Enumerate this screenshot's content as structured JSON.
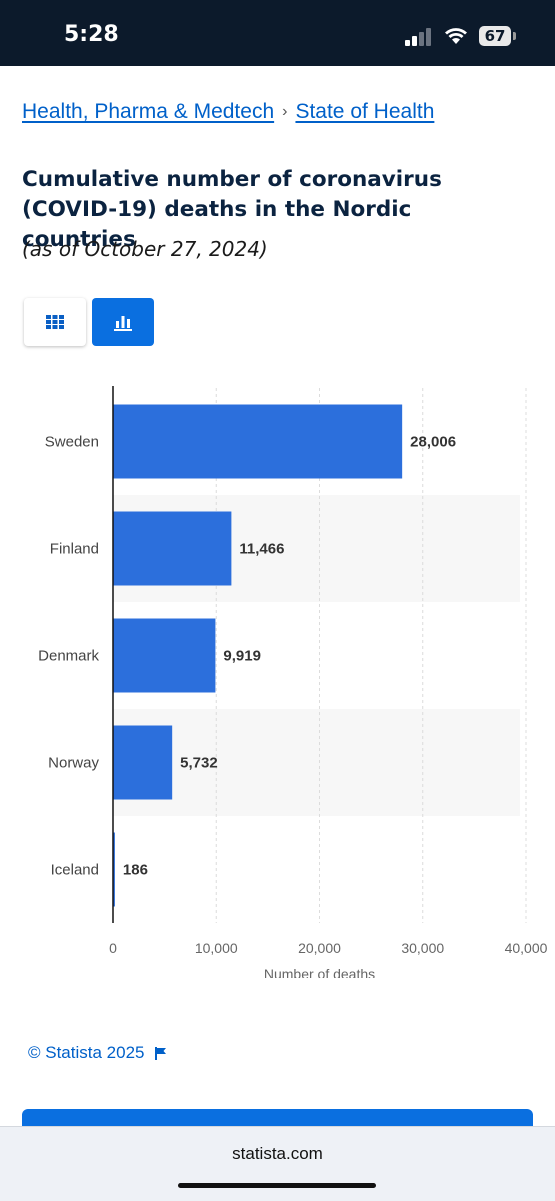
{
  "status": {
    "time": "5:28",
    "battery": "67"
  },
  "breadcrumb": {
    "item1": "Health, Pharma & Medtech",
    "item2": "State of Health"
  },
  "title": "Cumulative number of coronavirus (COVID-19) deaths in the Nordic countries",
  "subtitle": "(as of October 27, 2024)",
  "view_toggle": {
    "active": "chart"
  },
  "colors": {
    "bar": "#2c6fdc",
    "accent": "#0a6fe0",
    "link": "#0060c9",
    "stripe": "#f7f7f7"
  },
  "chart_data": {
    "type": "bar",
    "orientation": "horizontal",
    "categories": [
      "Sweden",
      "Finland",
      "Denmark",
      "Norway",
      "Iceland"
    ],
    "values": [
      28006,
      11466,
      9919,
      5732,
      186
    ],
    "value_labels": [
      "28,006",
      "11,466",
      "9,919",
      "5,732",
      "186"
    ],
    "xlabel": "Number of deaths",
    "xlim": [
      0,
      40000
    ],
    "xticks": [
      0,
      10000,
      20000,
      30000,
      40000
    ],
    "xtick_labels": [
      "0",
      "10,000",
      "20,000",
      "30,000",
      "40,000"
    ],
    "grid": true
  },
  "footer": {
    "copyright": "© Statista 2025",
    "url": "statista.com"
  }
}
